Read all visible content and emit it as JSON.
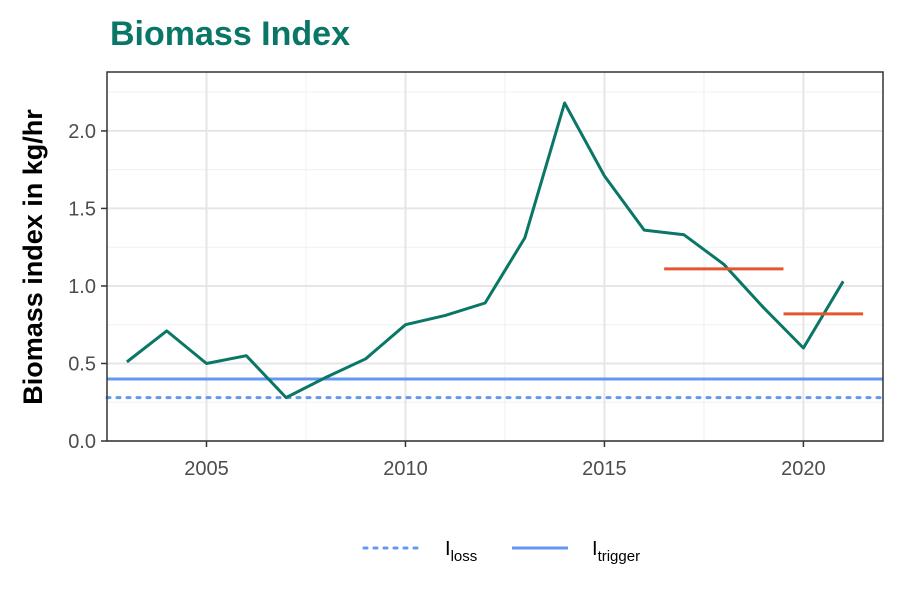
{
  "chart_data": {
    "type": "line",
    "title": "Biomass Index",
    "xlabel": "",
    "ylabel": "Biomass index in kg/hr",
    "xlim": [
      2002.5,
      2022.0
    ],
    "ylim": [
      0.0,
      2.38
    ],
    "x_ticks": [
      2005,
      2010,
      2015,
      2020
    ],
    "y_ticks": [
      0.0,
      0.5,
      1.0,
      1.5,
      2.0
    ],
    "x_tick_labels": [
      "2005",
      "2010",
      "2015",
      "2020"
    ],
    "y_tick_labels": [
      "0.0",
      "0.5",
      "1.0",
      "1.5",
      "2.0"
    ],
    "grid": true,
    "series": [
      {
        "x": [
          2003,
          2004,
          2005,
          2006,
          2007,
          2008,
          2009,
          2010,
          2011,
          2012,
          2013,
          2014,
          2015,
          2016,
          2017,
          2018,
          2019,
          2020,
          2021
        ],
        "values": [
          0.51,
          0.71,
          0.5,
          0.55,
          0.28,
          0.41,
          0.53,
          0.75,
          0.81,
          0.89,
          1.31,
          2.18,
          1.71,
          1.36,
          1.33,
          1.14,
          0.86,
          0.6,
          1.03
        ],
        "color": "#0a7766"
      }
    ],
    "segments": [
      {
        "x": [
          2016.5,
          2019.5
        ],
        "y": 1.11,
        "color": "#e4572e"
      },
      {
        "x": [
          2019.5,
          2021.5
        ],
        "y": 0.82,
        "color": "#e4572e"
      }
    ],
    "reference_lines": [
      {
        "name": "I",
        "sub": "loss",
        "y": 0.28,
        "style": "dotted",
        "color": "#6497f0"
      },
      {
        "name": "I",
        "sub": "trigger",
        "y": 0.4,
        "style": "solid",
        "color": "#6497f0"
      }
    ],
    "legend_position": "bottom",
    "title_color": "#0a7766"
  }
}
